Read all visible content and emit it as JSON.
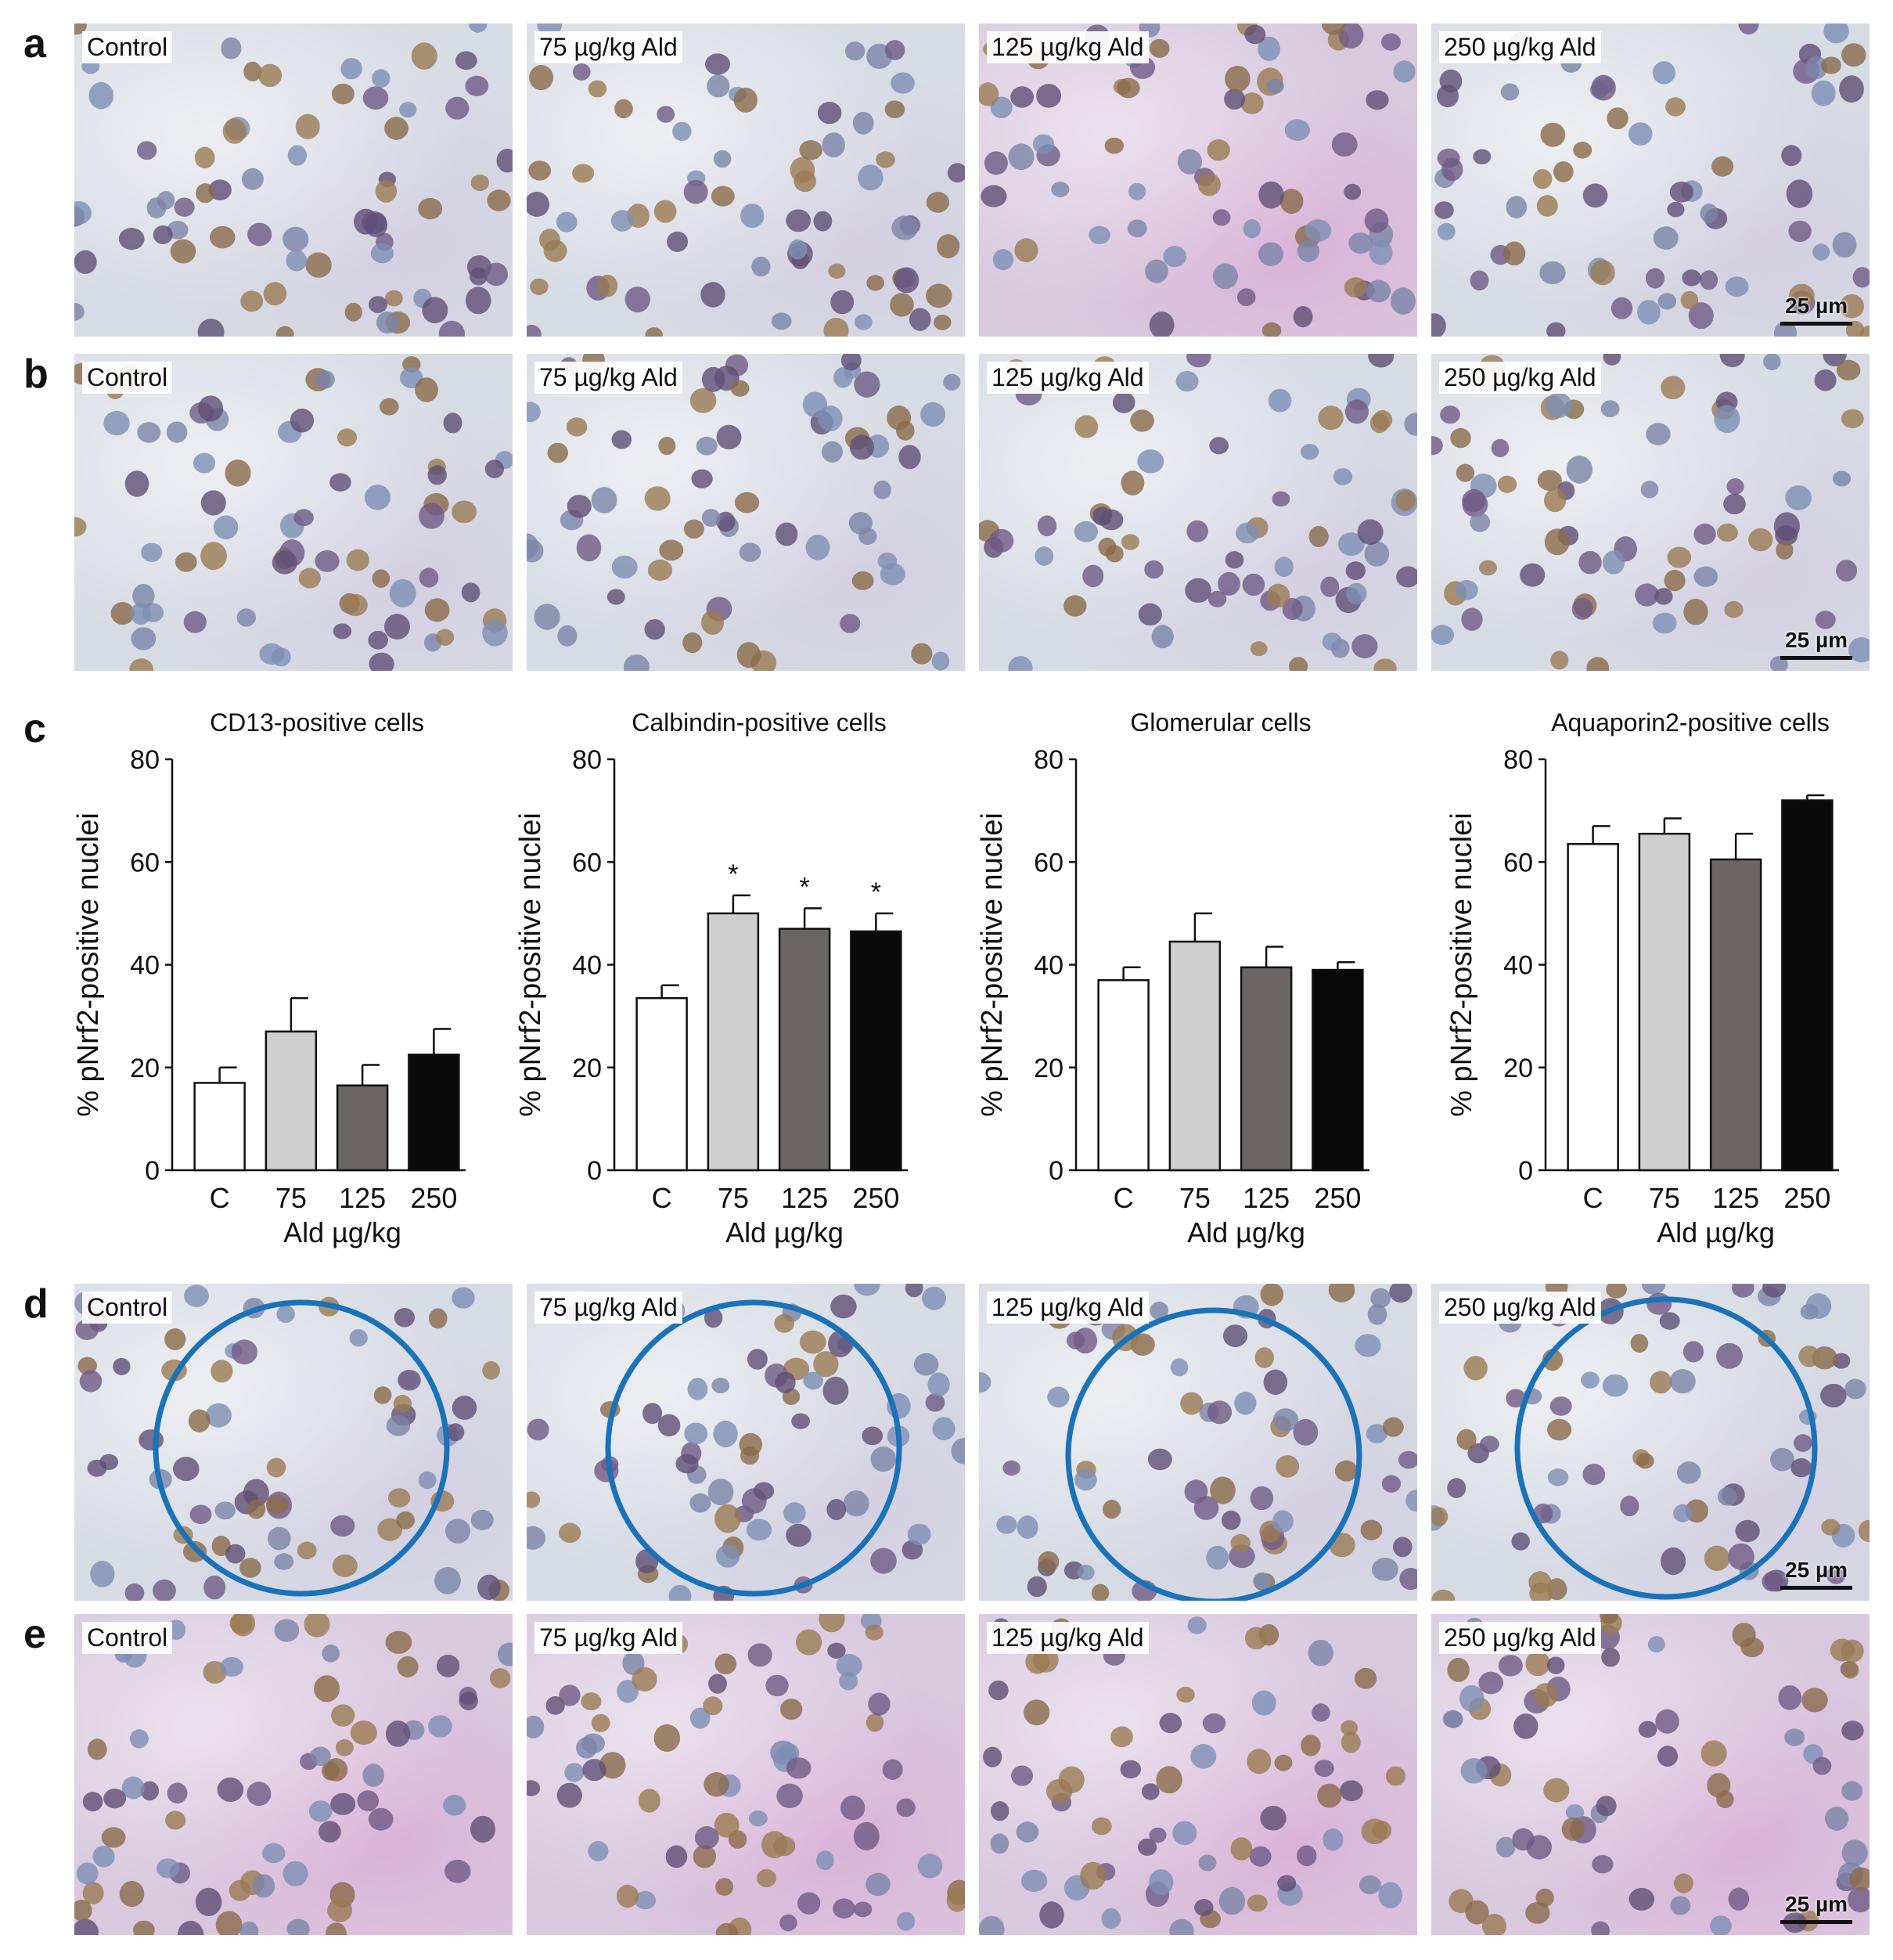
{
  "rows": [
    {
      "letter": "a",
      "panels": [
        {
          "label": "Control"
        },
        {
          "label": "75 µg/kg Ald"
        },
        {
          "label": "125 µg/kg Ald"
        },
        {
          "label": "250 µg/kg Ald",
          "scale_bar": "25 µm"
        }
      ]
    },
    {
      "letter": "b",
      "panels": [
        {
          "label": "Control"
        },
        {
          "label": "75 µg/kg Ald"
        },
        {
          "label": "125 µg/kg Ald"
        },
        {
          "label": "250 µg/kg Ald",
          "scale_bar": "25 µm"
        }
      ]
    },
    {
      "letter": "d",
      "panels": [
        {
          "label": "Control"
        },
        {
          "label": "75 µg/kg Ald"
        },
        {
          "label": "125 µg/kg Ald"
        },
        {
          "label": "250 µg/kg Ald",
          "scale_bar": "25 µm"
        }
      ]
    },
    {
      "letter": "e",
      "panels": [
        {
          "label": "Control"
        },
        {
          "label": "75 µg/kg Ald"
        },
        {
          "label": "125 µg/kg Ald"
        },
        {
          "label": "250 µg/kg Ald",
          "scale_bar": "25 µm"
        }
      ]
    }
  ],
  "chart_section": {
    "letter": "c"
  },
  "chart_data": [
    {
      "type": "bar",
      "title": "CD13-positive cells",
      "ylabel": "% pNrf2-positive nuclei",
      "xlabel": "Ald µg/kg",
      "categories": [
        "C",
        "75",
        "125",
        "250"
      ],
      "values": [
        17,
        27,
        16.5,
        22.5
      ],
      "errors": [
        3,
        6.5,
        4,
        5
      ],
      "significance": [
        "",
        "",
        "",
        ""
      ],
      "ylim": [
        0,
        80
      ],
      "yticks": [
        "0",
        "20",
        "40",
        "60",
        "80"
      ],
      "bar_colors": [
        "#ffffff",
        "#d0cfcf",
        "#6b6565",
        "#0a0a0a"
      ]
    },
    {
      "type": "bar",
      "title": "Calbindin-positive cells",
      "ylabel": "% pNrf2-positive nuclei",
      "xlabel": "Ald µg/kg",
      "categories": [
        "C",
        "75",
        "125",
        "250"
      ],
      "values": [
        33.5,
        50,
        47,
        46.5
      ],
      "errors": [
        2.5,
        3.5,
        4,
        3.5
      ],
      "significance": [
        "",
        "*",
        "*",
        "*"
      ],
      "ylim": [
        0,
        80
      ],
      "yticks": [
        "0",
        "20",
        "40",
        "60",
        "80"
      ],
      "bar_colors": [
        "#ffffff",
        "#d0cfcf",
        "#6b6565",
        "#0a0a0a"
      ]
    },
    {
      "type": "bar",
      "title": "Glomerular cells",
      "ylabel": "% pNrf2-positive nuclei",
      "xlabel": "Ald µg/kg",
      "categories": [
        "C",
        "75",
        "125",
        "250"
      ],
      "values": [
        37,
        44.5,
        39.5,
        39
      ],
      "errors": [
        2.5,
        5.5,
        4,
        1.5
      ],
      "significance": [
        "",
        "",
        "",
        ""
      ],
      "ylim": [
        0,
        80
      ],
      "yticks": [
        "0",
        "20",
        "40",
        "60",
        "80"
      ],
      "bar_colors": [
        "#ffffff",
        "#d0cfcf",
        "#6b6565",
        "#0a0a0a"
      ]
    },
    {
      "type": "bar",
      "title": "Aquaporin2-positive cells",
      "ylabel": "% pNrf2-positive nuclei",
      "xlabel": "Ald µg/kg",
      "categories": [
        "C",
        "75",
        "125",
        "250"
      ],
      "values": [
        63.5,
        65.5,
        60.5,
        72
      ],
      "errors": [
        3.5,
        3,
        5,
        1
      ],
      "significance": [
        "",
        "",
        "",
        ""
      ],
      "ylim": [
        0,
        80
      ],
      "yticks": [
        "0",
        "20",
        "40",
        "60",
        "80"
      ],
      "bar_colors": [
        "#ffffff",
        "#d0cfcf",
        "#6b6565",
        "#0a0a0a"
      ]
    }
  ]
}
